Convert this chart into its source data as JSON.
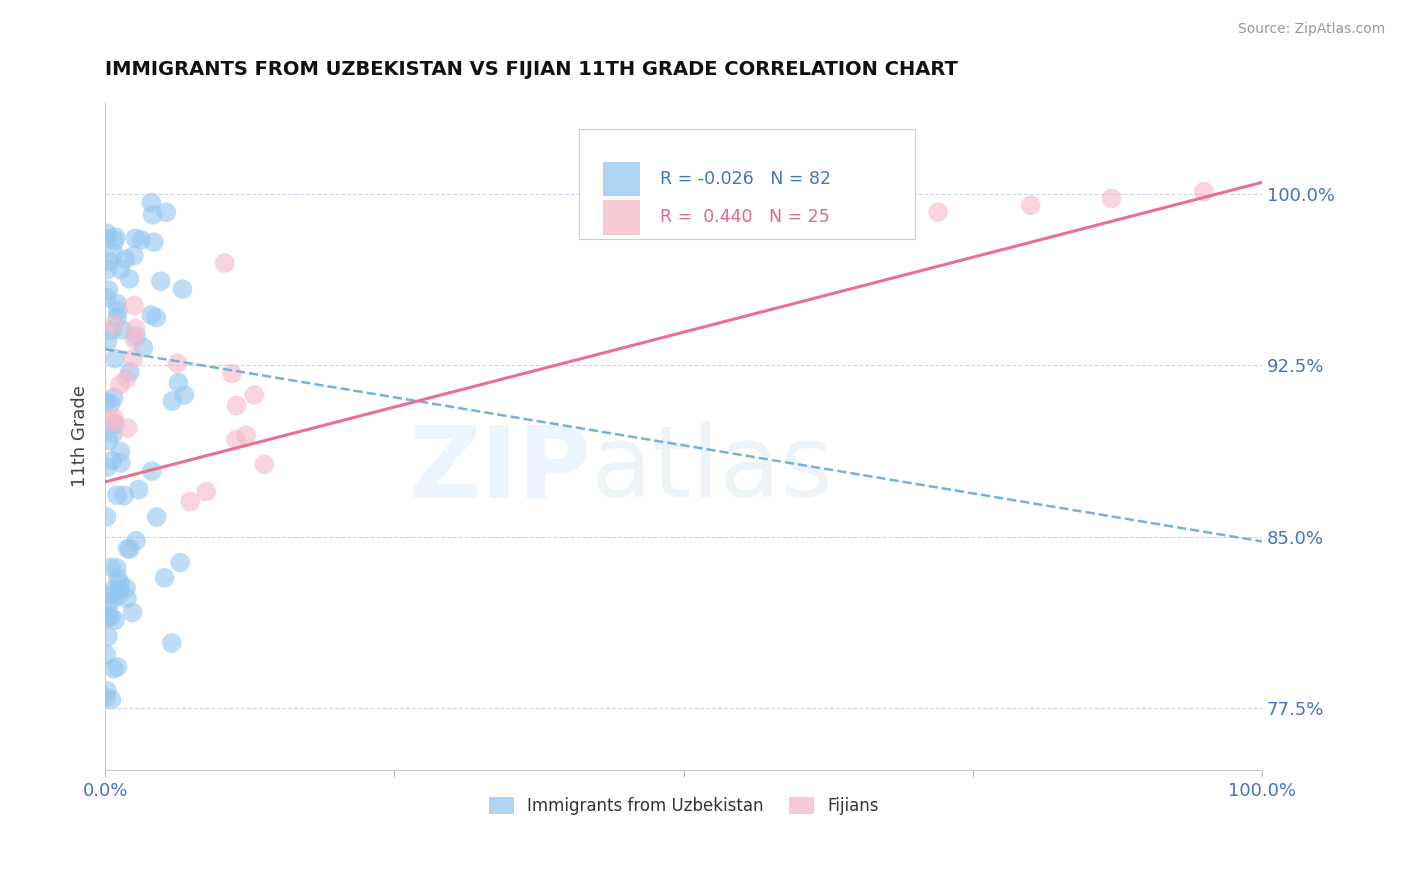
{
  "title": "IMMIGRANTS FROM UZBEKISTAN VS FIJIAN 11TH GRADE CORRELATION CHART",
  "source": "Source: ZipAtlas.com",
  "ylabel": "11th Grade",
  "ytick_labels": [
    "77.5%",
    "85.0%",
    "92.5%",
    "100.0%"
  ],
  "ytick_values": [
    0.775,
    0.85,
    0.925,
    1.0
  ],
  "xtick_labels": [
    "0.0%",
    "100.0%"
  ],
  "xtick_values": [
    0.0,
    1.0
  ],
  "legend_label1": "Immigrants from Uzbekistan",
  "legend_label2": "Fijians",
  "R1": -0.026,
  "N1": 82,
  "R2": 0.44,
  "N2": 25,
  "color_blue": "#93c6f0",
  "color_pink": "#f5b8c8",
  "color_blue_line": "#7ab0d8",
  "color_pink_line": "#e87090",
  "xlim": [
    0.0,
    1.0
  ],
  "ylim": [
    0.748,
    1.04
  ],
  "figsize": [
    14.06,
    8.92
  ],
  "blue_line_y0": 0.932,
  "blue_line_y1": 0.848,
  "pink_line_y0": 0.874,
  "pink_line_y1": 1.005
}
